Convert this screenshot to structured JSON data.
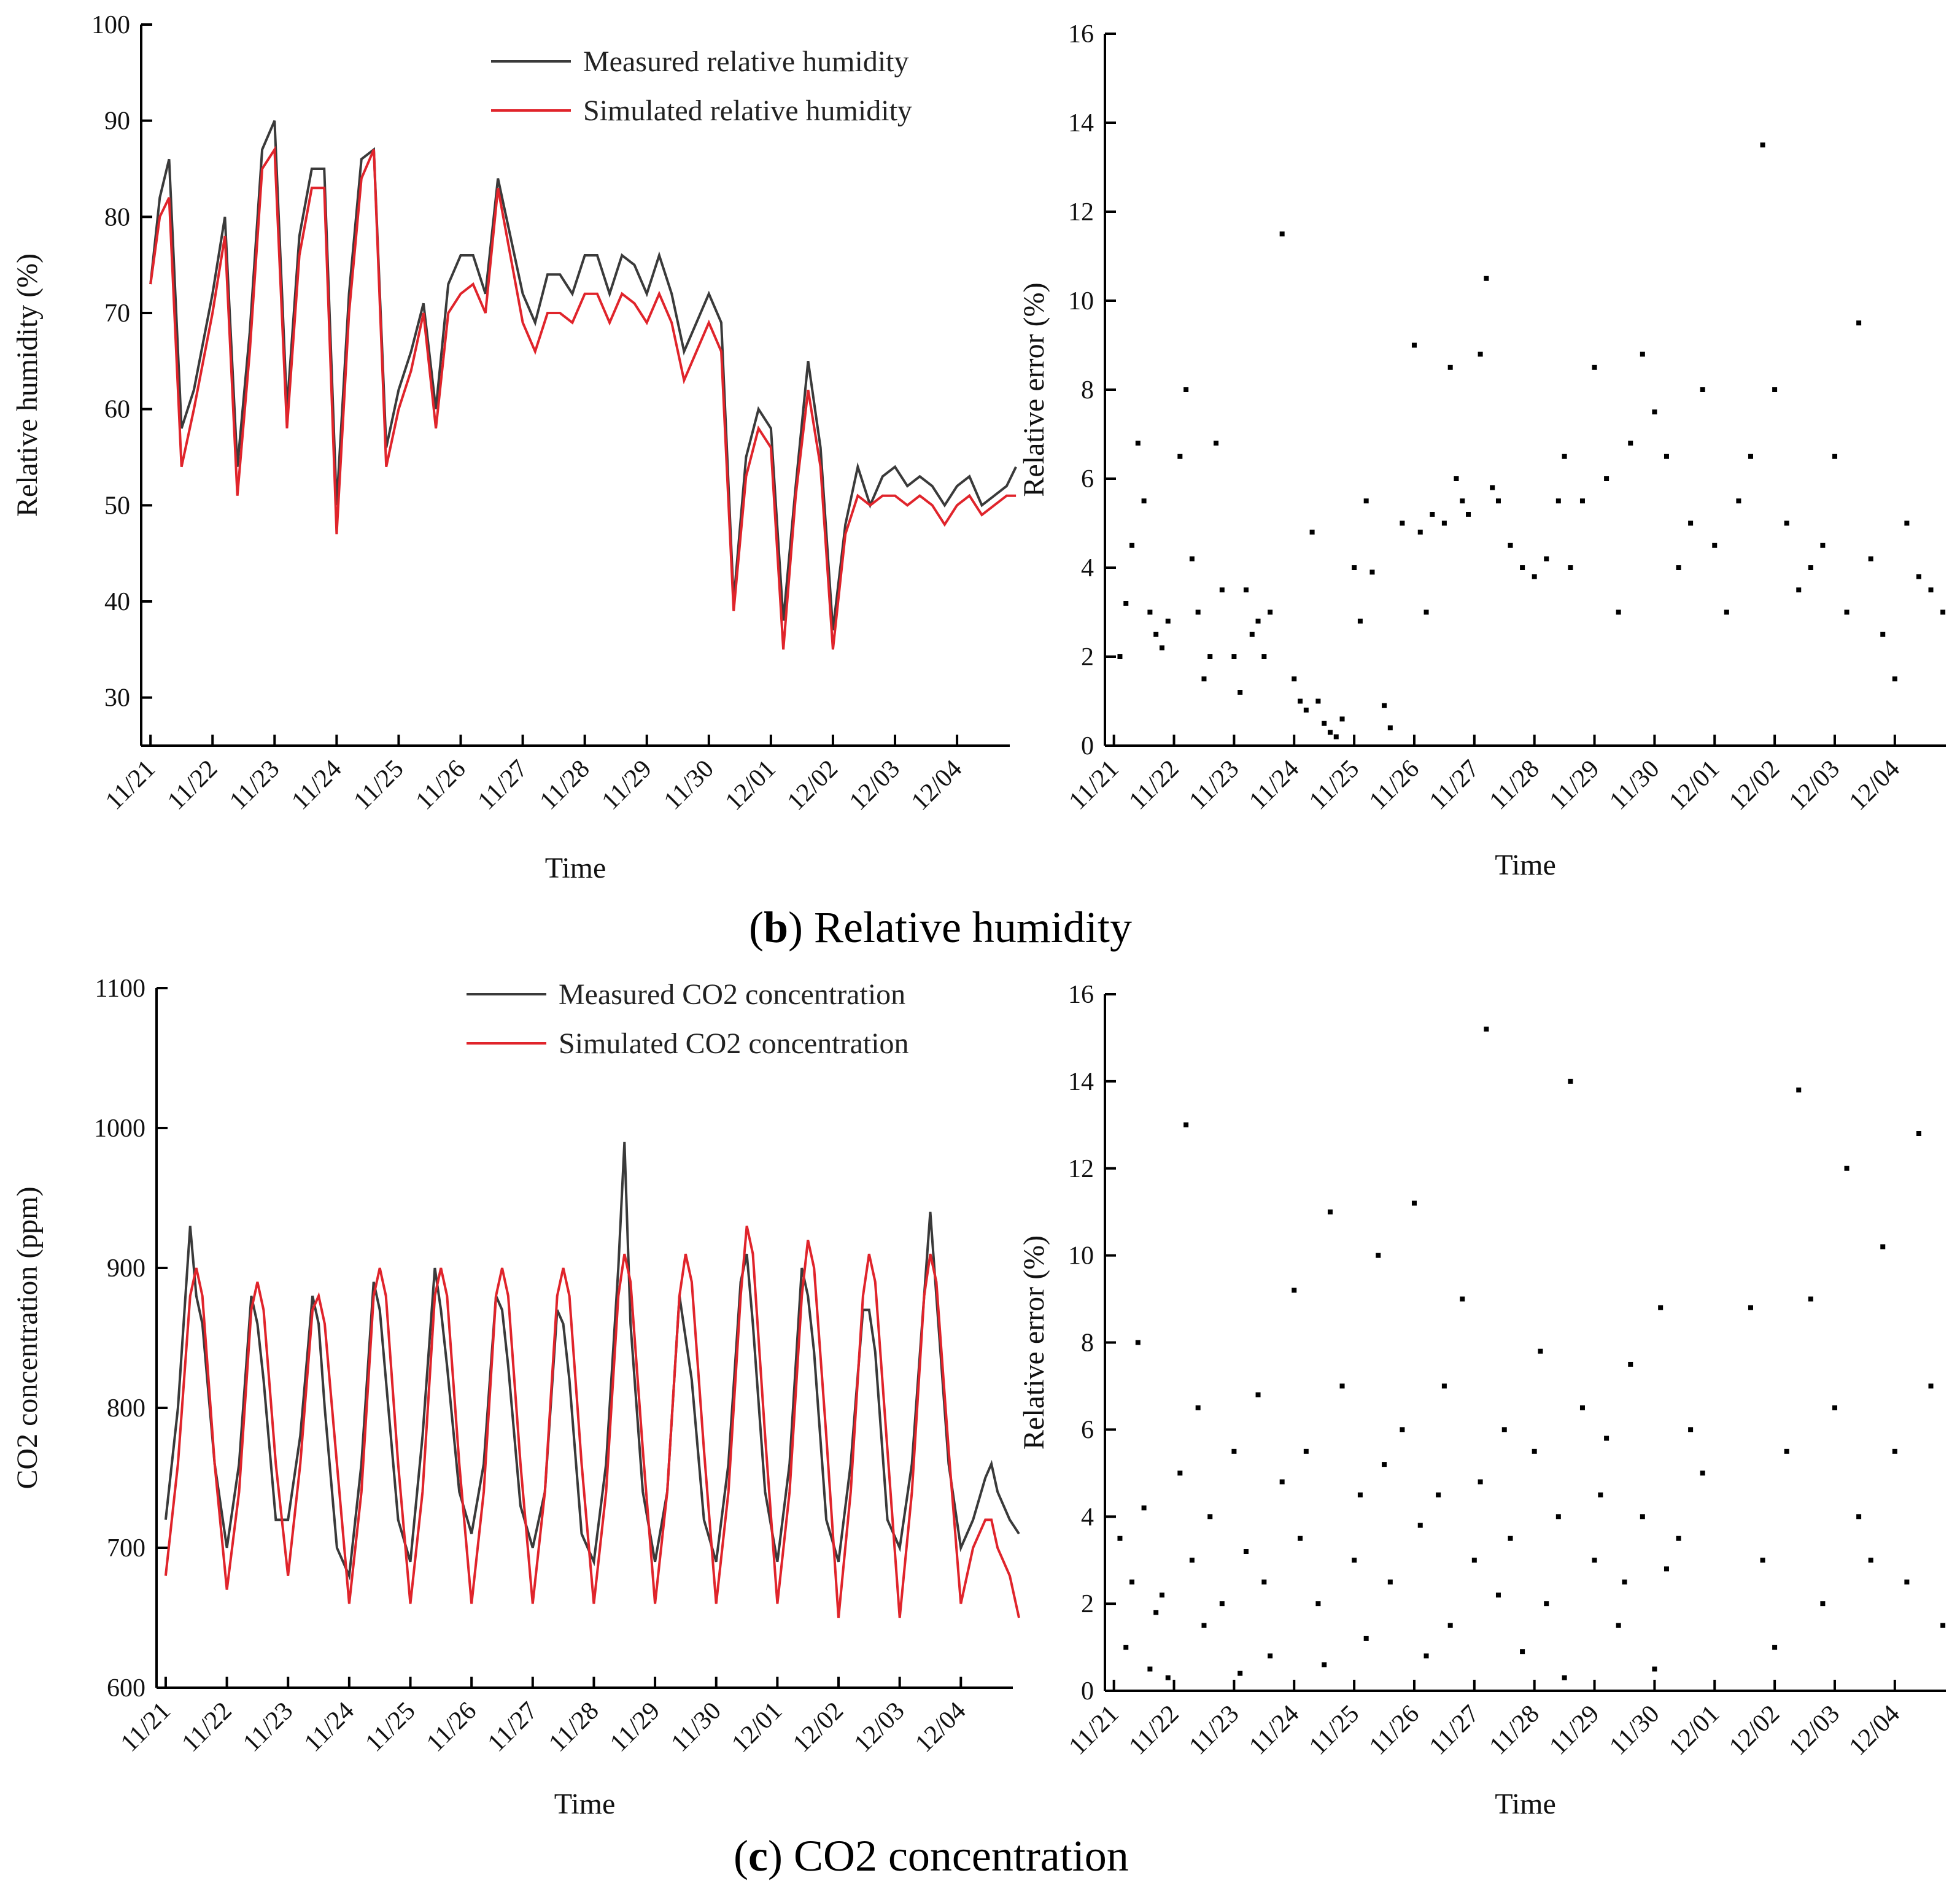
{
  "colors": {
    "measured": "#3a3a3a",
    "simulated": "#e0242b",
    "error_points": "#000000"
  },
  "captions": {
    "b": {
      "letter": "b",
      "text": " Relative humidity"
    },
    "c": {
      "letter": "c",
      "text": " CO2 concentration"
    }
  },
  "chart_data": [
    {
      "id": "rh-timeseries",
      "type": "line",
      "xlabel": "Time",
      "ylabel": "Relative humidity (%)",
      "ylim": [
        25,
        100
      ],
      "yticks": [
        30,
        40,
        50,
        60,
        70,
        80,
        90,
        100
      ],
      "categories": [
        "11/21",
        "11/22",
        "11/23",
        "11/24",
        "11/25",
        "11/26",
        "11/27",
        "11/28",
        "11/29",
        "11/30",
        "12/01",
        "12/02",
        "12/03",
        "12/04"
      ],
      "legend_position": "top-right",
      "series": [
        {
          "name": "Measured relative humidity",
          "color": "#3a3a3a",
          "x": [
            0,
            0.15,
            0.3,
            0.5,
            0.7,
            1.0,
            1.2,
            1.4,
            1.6,
            1.8,
            2.0,
            2.2,
            2.4,
            2.6,
            2.8,
            3.0,
            3.2,
            3.4,
            3.6,
            3.8,
            4.0,
            4.2,
            4.4,
            4.6,
            4.8,
            5.0,
            5.2,
            5.4,
            5.6,
            5.8,
            6.0,
            6.2,
            6.4,
            6.6,
            6.8,
            7.0,
            7.2,
            7.4,
            7.6,
            7.8,
            8.0,
            8.2,
            8.4,
            8.6,
            8.8,
            9.0,
            9.2,
            9.4,
            9.6,
            9.8,
            10.0,
            10.2,
            10.4,
            10.6,
            10.8,
            11.0,
            11.2,
            11.4,
            11.6,
            11.8,
            12.0,
            12.2,
            12.4,
            12.6,
            12.8,
            13.0,
            13.2,
            13.4,
            13.6,
            13.8,
            13.95
          ],
          "values": [
            73,
            82,
            86,
            58,
            62,
            72,
            80,
            54,
            68,
            87,
            90,
            60,
            78,
            85,
            85,
            50,
            72,
            86,
            87,
            56,
            62,
            66,
            71,
            60,
            73,
            76,
            76,
            72,
            84,
            78,
            72,
            69,
            74,
            74,
            72,
            76,
            76,
            72,
            76,
            75,
            72,
            76,
            72,
            66,
            69,
            72,
            69,
            40,
            55,
            60,
            58,
            38,
            52,
            65,
            56,
            37,
            48,
            54,
            50,
            53,
            54,
            52,
            53,
            52,
            50,
            52,
            53,
            50,
            51,
            52,
            54
          ]
        },
        {
          "name": "Simulated relative humidity",
          "color": "#e0242b",
          "x": [
            0,
            0.15,
            0.3,
            0.5,
            0.7,
            1.0,
            1.2,
            1.4,
            1.6,
            1.8,
            2.0,
            2.2,
            2.4,
            2.6,
            2.8,
            3.0,
            3.2,
            3.4,
            3.6,
            3.8,
            4.0,
            4.2,
            4.4,
            4.6,
            4.8,
            5.0,
            5.2,
            5.4,
            5.6,
            5.8,
            6.0,
            6.2,
            6.4,
            6.6,
            6.8,
            7.0,
            7.2,
            7.4,
            7.6,
            7.8,
            8.0,
            8.2,
            8.4,
            8.6,
            8.8,
            9.0,
            9.2,
            9.4,
            9.6,
            9.8,
            10.0,
            10.2,
            10.4,
            10.6,
            10.8,
            11.0,
            11.2,
            11.4,
            11.6,
            11.8,
            12.0,
            12.2,
            12.4,
            12.6,
            12.8,
            13.0,
            13.2,
            13.4,
            13.6,
            13.8,
            13.95
          ],
          "values": [
            73,
            80,
            82,
            54,
            60,
            70,
            78,
            51,
            66,
            85,
            87,
            58,
            76,
            83,
            83,
            47,
            70,
            84,
            87,
            54,
            60,
            64,
            70,
            58,
            70,
            72,
            73,
            70,
            83,
            76,
            69,
            66,
            70,
            70,
            69,
            72,
            72,
            69,
            72,
            71,
            69,
            72,
            69,
            63,
            66,
            69,
            66,
            39,
            53,
            58,
            56,
            35,
            51,
            62,
            54,
            35,
            47,
            51,
            50,
            51,
            51,
            50,
            51,
            50,
            48,
            50,
            51,
            49,
            50,
            51,
            51
          ]
        }
      ]
    },
    {
      "id": "rh-error",
      "type": "scatter",
      "xlabel": "Time",
      "ylabel": "Relative error (%)",
      "ylim": [
        0,
        16
      ],
      "yticks": [
        0,
        2,
        4,
        6,
        8,
        10,
        12,
        14,
        16
      ],
      "categories": [
        "11/21",
        "11/22",
        "11/23",
        "11/24",
        "11/25",
        "11/26",
        "11/27",
        "11/28",
        "11/29",
        "11/30",
        "12/01",
        "12/02",
        "12/03",
        "12/04"
      ],
      "x": [
        0.1,
        0.2,
        0.3,
        0.4,
        0.5,
        0.6,
        0.7,
        0.8,
        0.9,
        1.1,
        1.2,
        1.3,
        1.4,
        1.5,
        1.6,
        1.7,
        1.8,
        2.0,
        2.1,
        2.2,
        2.3,
        2.4,
        2.5,
        2.6,
        2.8,
        3.0,
        3.1,
        3.2,
        3.3,
        3.4,
        3.5,
        3.6,
        3.7,
        3.8,
        4.0,
        4.1,
        4.2,
        4.3,
        4.5,
        4.6,
        4.8,
        5.0,
        5.1,
        5.2,
        5.3,
        5.5,
        5.6,
        5.7,
        5.8,
        5.9,
        6.1,
        6.2,
        6.3,
        6.4,
        6.6,
        6.8,
        7.0,
        7.2,
        7.4,
        7.5,
        7.6,
        7.8,
        8.0,
        8.2,
        8.4,
        8.6,
        8.8,
        9.0,
        9.2,
        9.4,
        9.6,
        9.8,
        10.0,
        10.2,
        10.4,
        10.6,
        10.8,
        11.0,
        11.2,
        11.4,
        11.6,
        11.8,
        12.0,
        12.2,
        12.4,
        12.6,
        12.8,
        13.0,
        13.2,
        13.4,
        13.6,
        13.8
      ],
      "values": [
        2.0,
        3.2,
        4.5,
        6.8,
        5.5,
        3.0,
        2.5,
        2.2,
        2.8,
        6.5,
        8.0,
        4.2,
        3.0,
        1.5,
        2.0,
        6.8,
        3.5,
        2.0,
        1.2,
        3.5,
        2.5,
        2.8,
        2.0,
        3.0,
        11.5,
        1.5,
        1.0,
        0.8,
        4.8,
        1.0,
        0.5,
        0.3,
        0.2,
        0.6,
        4.0,
        2.8,
        5.5,
        3.9,
        0.9,
        0.4,
        5.0,
        9.0,
        4.8,
        3.0,
        5.2,
        5.0,
        8.5,
        6.0,
        5.5,
        5.2,
        8.8,
        10.5,
        5.8,
        5.5,
        4.5,
        4.0,
        3.8,
        4.2,
        5.5,
        6.5,
        4.0,
        5.5,
        8.5,
        6.0,
        3.0,
        6.8,
        8.8,
        7.5,
        6.5,
        4.0,
        5.0,
        8.0,
        4.5,
        3.0,
        5.5,
        6.5,
        13.5,
        8.0,
        5.0,
        3.5,
        4.0,
        4.5,
        6.5,
        3.0,
        9.5,
        4.2,
        2.5,
        1.5,
        5.0,
        3.8,
        3.5,
        3.0
      ]
    },
    {
      "id": "co2-timeseries",
      "type": "line",
      "xlabel": "Time",
      "ylabel": "CO2 concentration (ppm)",
      "ylim": [
        600,
        1100
      ],
      "yticks": [
        600,
        700,
        800,
        900,
        1000,
        1100
      ],
      "categories": [
        "11/21",
        "11/22",
        "11/23",
        "11/24",
        "11/25",
        "11/26",
        "11/27",
        "11/28",
        "11/29",
        "11/30",
        "12/01",
        "12/02",
        "12/03",
        "12/04"
      ],
      "legend_position": "top-right",
      "series": [
        {
          "name": "Measured CO2 concentration",
          "color": "#3a3a3a",
          "x": [
            0,
            0.2,
            0.4,
            0.5,
            0.6,
            0.8,
            1.0,
            1.2,
            1.4,
            1.5,
            1.6,
            1.8,
            2.0,
            2.2,
            2.4,
            2.5,
            2.6,
            2.8,
            3.0,
            3.2,
            3.4,
            3.5,
            3.6,
            3.8,
            4.0,
            4.2,
            4.4,
            4.5,
            4.6,
            4.8,
            5.0,
            5.2,
            5.4,
            5.5,
            5.6,
            5.8,
            6.0,
            6.2,
            6.4,
            6.5,
            6.6,
            6.8,
            7.0,
            7.2,
            7.4,
            7.5,
            7.6,
            7.8,
            8.0,
            8.2,
            8.4,
            8.5,
            8.6,
            8.8,
            9.0,
            9.2,
            9.4,
            9.5,
            9.6,
            9.8,
            10.0,
            10.2,
            10.4,
            10.5,
            10.6,
            10.8,
            11.0,
            11.2,
            11.4,
            11.5,
            11.6,
            11.8,
            12.0,
            12.2,
            12.4,
            12.5,
            12.6,
            12.8,
            13.0,
            13.2,
            13.4,
            13.5,
            13.6,
            13.8,
            13.95
          ],
          "values": [
            720,
            800,
            930,
            880,
            860,
            760,
            700,
            760,
            880,
            860,
            820,
            720,
            720,
            780,
            880,
            860,
            800,
            700,
            680,
            760,
            890,
            870,
            820,
            720,
            690,
            780,
            900,
            870,
            830,
            740,
            710,
            760,
            880,
            870,
            830,
            730,
            700,
            740,
            870,
            860,
            820,
            710,
            690,
            760,
            900,
            990,
            860,
            740,
            690,
            740,
            880,
            850,
            820,
            720,
            690,
            760,
            890,
            910,
            860,
            740,
            690,
            760,
            900,
            880,
            840,
            720,
            690,
            760,
            870,
            870,
            840,
            720,
            700,
            760,
            880,
            940,
            880,
            760,
            700,
            720,
            750,
            760,
            740,
            720,
            710
          ]
        },
        {
          "name": "Simulated CO2 concentration",
          "color": "#e0242b",
          "x": [
            0,
            0.2,
            0.4,
            0.5,
            0.6,
            0.8,
            1.0,
            1.2,
            1.4,
            1.5,
            1.6,
            1.8,
            2.0,
            2.2,
            2.4,
            2.5,
            2.6,
            2.8,
            3.0,
            3.2,
            3.4,
            3.5,
            3.6,
            3.8,
            4.0,
            4.2,
            4.4,
            4.5,
            4.6,
            4.8,
            5.0,
            5.2,
            5.4,
            5.5,
            5.6,
            5.8,
            6.0,
            6.2,
            6.4,
            6.5,
            6.6,
            6.8,
            7.0,
            7.2,
            7.4,
            7.5,
            7.6,
            7.8,
            8.0,
            8.2,
            8.4,
            8.5,
            8.6,
            8.8,
            9.0,
            9.2,
            9.4,
            9.5,
            9.6,
            9.8,
            10.0,
            10.2,
            10.4,
            10.5,
            10.6,
            10.8,
            11.0,
            11.2,
            11.4,
            11.5,
            11.6,
            11.8,
            12.0,
            12.2,
            12.4,
            12.5,
            12.6,
            12.8,
            13.0,
            13.2,
            13.4,
            13.5,
            13.6,
            13.8,
            13.95
          ],
          "values": [
            680,
            760,
            880,
            900,
            880,
            760,
            670,
            740,
            870,
            890,
            870,
            760,
            680,
            760,
            870,
            880,
            860,
            760,
            660,
            740,
            880,
            900,
            880,
            760,
            660,
            740,
            880,
            900,
            880,
            760,
            660,
            740,
            880,
            900,
            880,
            760,
            660,
            740,
            880,
            900,
            880,
            760,
            660,
            740,
            880,
            910,
            890,
            770,
            660,
            740,
            880,
            910,
            890,
            770,
            660,
            740,
            880,
            930,
            910,
            780,
            660,
            740,
            880,
            920,
            900,
            780,
            650,
            740,
            880,
            910,
            890,
            770,
            650,
            740,
            880,
            910,
            890,
            770,
            660,
            700,
            720,
            720,
            700,
            680,
            650
          ]
        }
      ]
    },
    {
      "id": "co2-error",
      "type": "scatter",
      "xlabel": "Time",
      "ylabel": "Relative error (%)",
      "ylim": [
        0,
        16
      ],
      "yticks": [
        0,
        2,
        4,
        6,
        8,
        10,
        12,
        14,
        16
      ],
      "categories": [
        "11/21",
        "11/22",
        "11/23",
        "11/24",
        "11/25",
        "11/26",
        "11/27",
        "11/28",
        "11/29",
        "11/30",
        "12/01",
        "12/02",
        "12/03",
        "12/04"
      ],
      "x": [
        0.1,
        0.2,
        0.3,
        0.4,
        0.5,
        0.6,
        0.7,
        0.8,
        0.9,
        1.1,
        1.2,
        1.3,
        1.4,
        1.5,
        1.6,
        1.8,
        2.0,
        2.1,
        2.2,
        2.4,
        2.5,
        2.6,
        2.8,
        3.0,
        3.1,
        3.2,
        3.4,
        3.5,
        3.6,
        3.8,
        4.0,
        4.1,
        4.2,
        4.4,
        4.5,
        4.6,
        4.8,
        5.0,
        5.1,
        5.2,
        5.4,
        5.5,
        5.6,
        5.8,
        6.0,
        6.1,
        6.2,
        6.4,
        6.5,
        6.6,
        6.8,
        7.0,
        7.1,
        7.2,
        7.4,
        7.5,
        7.6,
        7.8,
        8.0,
        8.1,
        8.2,
        8.4,
        8.5,
        8.6,
        8.8,
        9.0,
        9.1,
        9.2,
        9.4,
        9.6,
        9.8,
        10.6,
        10.8,
        11.0,
        11.2,
        11.4,
        11.6,
        11.8,
        12.0,
        12.2,
        12.4,
        12.6,
        12.8,
        13.0,
        13.2,
        13.4,
        13.6,
        13.8
      ],
      "values": [
        3.5,
        1.0,
        2.5,
        8.0,
        4.2,
        0.5,
        1.8,
        2.2,
        0.3,
        5.0,
        13.0,
        3.0,
        6.5,
        1.5,
        4.0,
        2.0,
        5.5,
        0.4,
        3.2,
        6.8,
        2.5,
        0.8,
        4.8,
        9.2,
        3.5,
        5.5,
        2.0,
        0.6,
        11.0,
        7.0,
        3.0,
        4.5,
        1.2,
        10.0,
        5.2,
        2.5,
        6.0,
        11.2,
        3.8,
        0.8,
        4.5,
        7.0,
        1.5,
        9.0,
        3.0,
        4.8,
        15.2,
        2.2,
        6.0,
        3.5,
        0.9,
        5.5,
        7.8,
        2.0,
        4.0,
        0.3,
        14.0,
        6.5,
        3.0,
        4.5,
        5.8,
        1.5,
        2.5,
        7.5,
        4.0,
        0.5,
        8.8,
        2.8,
        3.5,
        6.0,
        5.0,
        8.8,
        3.0,
        1.0,
        5.5,
        13.8,
        9.0,
        2.0,
        6.5,
        12.0,
        4.0,
        3.0,
        10.2,
        5.5,
        2.5,
        12.8,
        7.0,
        1.5
      ]
    }
  ]
}
